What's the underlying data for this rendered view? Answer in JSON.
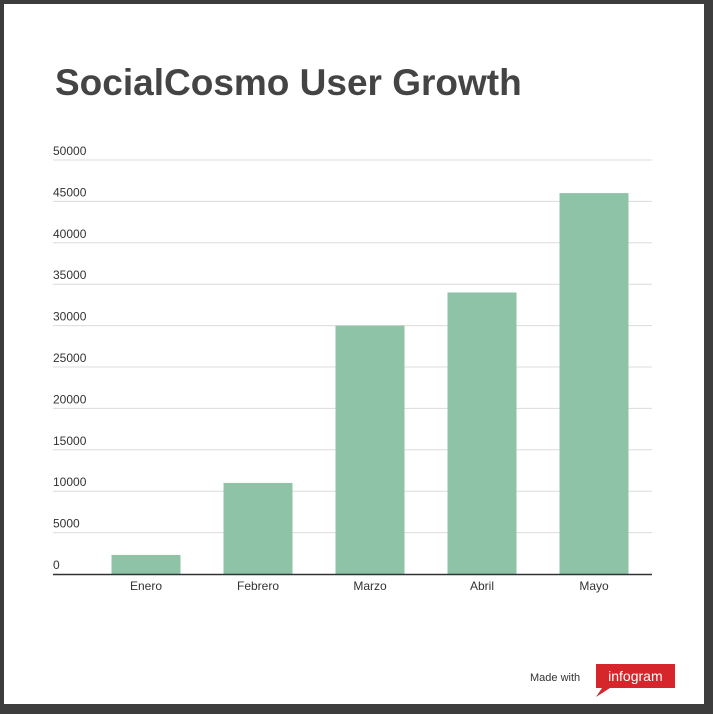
{
  "chart_data": {
    "type": "bar",
    "title": "SocialCosmo User Growth",
    "categories": [
      "Enero",
      "Febrero",
      "Marzo",
      "Abril",
      "Mayo"
    ],
    "values": [
      2300,
      11000,
      30000,
      34000,
      46000
    ],
    "ylim": [
      0,
      50000
    ],
    "yticks": [
      "0",
      "5000",
      "10000",
      "15000",
      "20000",
      "25000",
      "30000",
      "35000",
      "40000",
      "45000",
      "50000"
    ],
    "grid": true,
    "bar_color": "#8fc3a7"
  },
  "credit": {
    "made_with": "Made with",
    "brand": "infogram",
    "brand_color": "#d7262b"
  }
}
